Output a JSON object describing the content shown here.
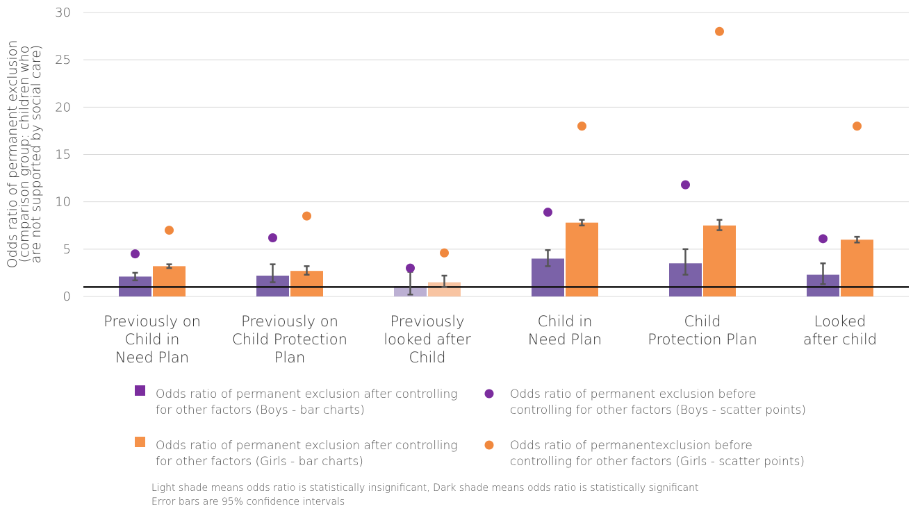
{
  "chart_data": {
    "type": "bar",
    "ylabel_lines": [
      "Odds ratio of permanent exclusion",
      "(comparison group: children who",
      "are not supported by social care)"
    ],
    "ylim": [
      0,
      30
    ],
    "yticks": [
      0,
      5,
      10,
      15,
      20,
      25,
      30
    ],
    "reference_line": 1,
    "grid": true,
    "categories": [
      [
        "Previously on",
        "Child in",
        "Need Plan"
      ],
      [
        "Previously on",
        "Child Protection",
        "Plan"
      ],
      [
        "Previously",
        "looked after",
        "Child"
      ],
      [
        "Child in",
        "Need Plan"
      ],
      [
        "Child",
        "Protection Plan"
      ],
      [
        "Looked",
        "after child"
      ]
    ],
    "series": [
      {
        "key": "boys_bar",
        "kind": "bar",
        "color": "#7b62a8",
        "light_color": "#bcb0d3",
        "values": [
          2.1,
          2.2,
          1.1,
          4.0,
          3.5,
          2.3
        ],
        "err_low": [
          1.7,
          1.5,
          0.2,
          3.2,
          2.3,
          1.3
        ],
        "err_high": [
          2.5,
          3.4,
          2.6,
          4.9,
          5.0,
          3.5
        ],
        "significant": [
          true,
          true,
          false,
          true,
          true,
          true
        ]
      },
      {
        "key": "girls_bar",
        "kind": "bar",
        "color": "#f5924a",
        "light_color": "#f8c4a2",
        "values": [
          3.2,
          2.7,
          1.5,
          7.8,
          7.5,
          6.0
        ],
        "err_low": [
          3.0,
          2.3,
          1.0,
          7.5,
          7.0,
          5.7
        ],
        "err_high": [
          3.4,
          3.2,
          2.2,
          8.1,
          8.1,
          6.3
        ],
        "significant": [
          true,
          true,
          false,
          true,
          true,
          true
        ]
      },
      {
        "key": "boys_point",
        "kind": "scatter",
        "color": "#7b2d9e",
        "values": [
          4.5,
          6.2,
          3.0,
          8.9,
          11.8,
          6.1
        ]
      },
      {
        "key": "girls_point",
        "kind": "scatter",
        "color": "#f0883e",
        "values": [
          7.0,
          8.5,
          4.6,
          18.0,
          28.0,
          18.0
        ]
      }
    ]
  },
  "legend": [
    {
      "marker": "square",
      "color": "#7b2d9e",
      "lines": [
        "Odds ratio of permanent exclusion after controlling",
        "for other factors (Boys - bar charts)"
      ]
    },
    {
      "marker": "circle",
      "color": "#7b2d9e",
      "lines": [
        "Odds ratio of permanent exclusion before",
        "controlling for other factors (Boys - scatter points)"
      ]
    },
    {
      "marker": "square",
      "color": "#f5924a",
      "lines": [
        "Odds ratio of permanent exclusion after controlling",
        "for other factors (Girls - bar charts)"
      ]
    },
    {
      "marker": "circle",
      "color": "#f0883e",
      "lines": [
        "Odds ratio of permanentexclusion before",
        "controlling for other factors (Girls - scatter points)"
      ]
    }
  ],
  "notes": [
    "Light shade means odds ratio is statistically insignificant, Dark shade means odds ratio is statistically significant",
    "Error bars are 95% confidence intervals"
  ]
}
